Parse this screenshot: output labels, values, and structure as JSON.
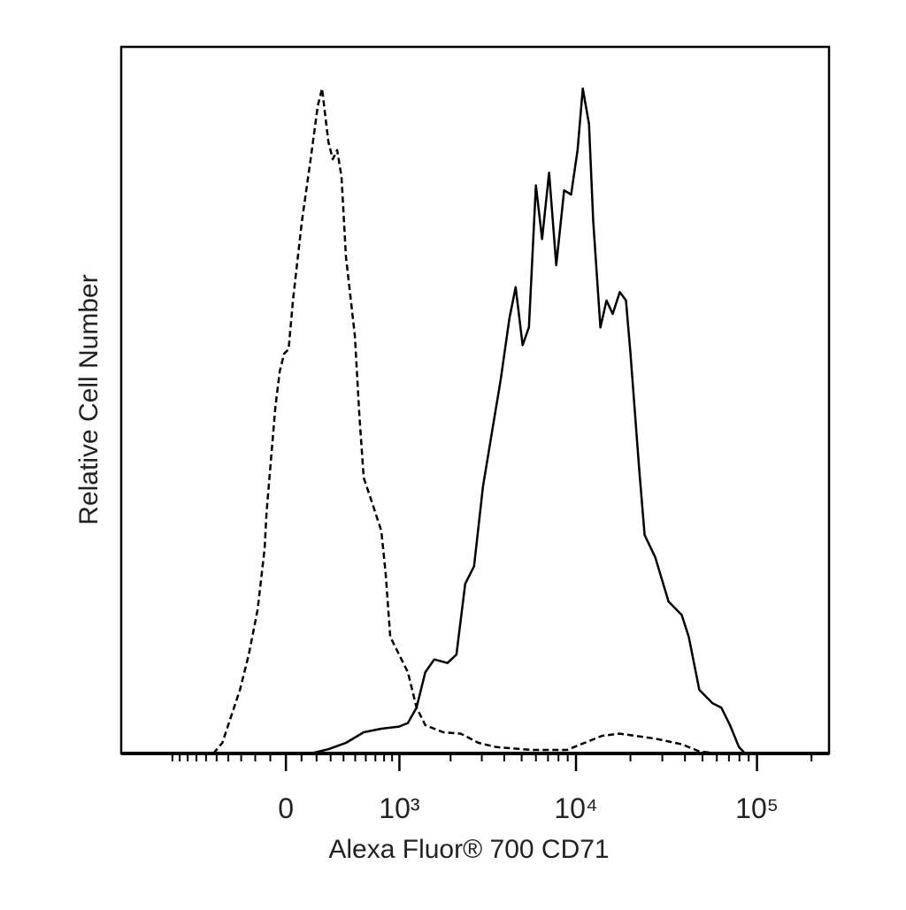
{
  "chart_data": {
    "type": "line",
    "xlabel": "Alexa Fluor® 700 CD71",
    "ylabel": "Relative Cell Number",
    "xscale": "biexponential",
    "xlim": [
      -2000,
      250000
    ],
    "ylim": [
      0,
      100
    ],
    "xticks": [
      {
        "value": 0,
        "label": "0"
      },
      {
        "value": 1000,
        "label": "10³"
      },
      {
        "value": 10000,
        "label": "10⁴"
      },
      {
        "value": 100000,
        "label": "10⁵"
      }
    ],
    "xminorticks": [
      -1000,
      -900,
      -800,
      -700,
      -600,
      -500,
      -400,
      -300,
      -200,
      -100,
      100,
      200,
      300,
      400,
      500,
      600,
      700,
      800,
      900,
      2000,
      3000,
      4000,
      5000,
      6000,
      7000,
      8000,
      9000,
      20000,
      30000,
      40000,
      50000,
      60000,
      70000,
      80000,
      90000,
      200000
    ],
    "series": [
      {
        "color": "#000000",
        "dashed": true,
        "x": [
          -530,
          -450,
          -377,
          -309,
          -245,
          -184,
          -137,
          -125,
          -96,
          -67,
          -39,
          -11,
          17,
          45,
          102,
          160,
          208,
          238,
          283,
          316,
          350,
          384,
          420,
          497,
          538,
          580,
          670,
          767,
          820,
          876,
          995,
          1126,
          1270,
          1430,
          1813,
          2285,
          2874,
          3612,
          5675,
          8900,
          11150,
          13950,
          17450,
          27400,
          38400,
          48000,
          60000
        ],
        "values": [
          0,
          1.5,
          5.3,
          9.0,
          14.0,
          20.3,
          29.0,
          34.0,
          41.5,
          49.1,
          54.1,
          56.6,
          57.2,
          64.1,
          75.3,
          84.1,
          91.6,
          94.1,
          86.6,
          84.1,
          85.4,
          81.6,
          70.3,
          59.1,
          47.8,
          39.0,
          35.3,
          31.5,
          25.3,
          16.5,
          14.0,
          11.5,
          6.5,
          4.0,
          3.0,
          2.8,
          1.5,
          0.9,
          0.5,
          0.5,
          1.5,
          2.5,
          2.8,
          2.1,
          1.3,
          0.3,
          0
        ]
      },
      {
        "color": "#000000",
        "dashed": false,
        "x": [
          160,
          283,
          420,
          580,
          767,
          995,
          1126,
          1270,
          1430,
          1612,
          1920,
          2160,
          2420,
          2715,
          3045,
          3410,
          3820,
          4280,
          4630,
          5065,
          5485,
          6000,
          6490,
          7100,
          7775,
          8600,
          9400,
          10200,
          10900,
          11800,
          12450,
          13650,
          14750,
          15950,
          17450,
          18900,
          20000,
          22350,
          23950,
          27400,
          32450,
          38400,
          42000,
          48050,
          56850,
          63500,
          71000,
          79500,
          86000
        ],
        "values": [
          0,
          0.6,
          1.5,
          3.0,
          3.5,
          3.8,
          4.3,
          6.5,
          11.5,
          13.3,
          12.8,
          14.0,
          24.0,
          26.5,
          37.8,
          45.3,
          52.8,
          61.6,
          66.0,
          57.8,
          60.3,
          80.4,
          72.8,
          82.2,
          69.1,
          79.7,
          79.1,
          85.4,
          94.1,
          89.1,
          75.3,
          60.3,
          64.1,
          62.2,
          65.3,
          64.1,
          56.6,
          40.3,
          30.9,
          27.8,
          21.5,
          19.6,
          16.5,
          9.0,
          7.1,
          6.5,
          4.0,
          0.9,
          0
        ]
      }
    ]
  }
}
